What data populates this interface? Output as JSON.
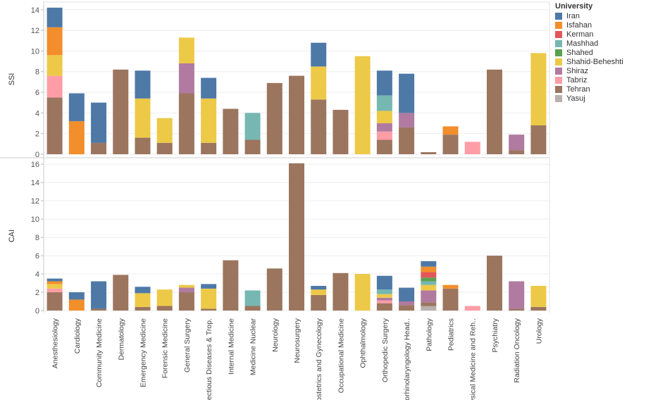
{
  "chart_data": {
    "type": "bar",
    "stacked": true,
    "legend_title": "University",
    "legend_position": "right",
    "categories": [
      "Anesthesiology",
      "Cardiology",
      "Community Medicine",
      "Dermatology",
      "Emergency Medicine",
      "Forensic Medicine",
      "General Surgery",
      "Infectious Diseases & Trop.",
      "Internal Medicine",
      "Medicine Nuclear",
      "Neurology",
      "Neurosurgery",
      "Obstetrics and Gynecology",
      "Occupational Medicine",
      "Ophthalmology",
      "Orthopedic Surgery",
      "Otorhinolaryngology Head..",
      "Pathology",
      "Pediatrics",
      "Physical Medicine and Reh..",
      "Psychiatry",
      "Radiation Oncology",
      "Urology"
    ],
    "universities": [
      "Iran",
      "Isfahan",
      "Kerman",
      "Mashhad",
      "Shahed",
      "Shahid-Beheshti",
      "Shiraz",
      "Tabriz",
      "Tehran",
      "Yasuj"
    ],
    "colors": {
      "Iran": "#4e79a7",
      "Isfahan": "#f28e2b",
      "Kerman": "#e15759",
      "Mashhad": "#76b7b2",
      "Shahed": "#59a14f",
      "Shahid-Beheshti": "#edc948",
      "Shiraz": "#b07aa1",
      "Tabriz": "#ff9da7",
      "Tehran": "#9c755f",
      "Yasuj": "#bab0ac"
    },
    "panels": [
      {
        "label": "SSI",
        "ylim": [
          0,
          14.6
        ],
        "yticks": [
          0,
          2,
          4,
          6,
          8,
          10,
          12,
          14
        ],
        "bars": [
          [
            {
              "u": "Tehran",
              "v": 5.5
            },
            {
              "u": "Tabriz",
              "v": 2.1
            },
            {
              "u": "Shahid-Beheshti",
              "v": 2.0
            },
            {
              "u": "Isfahan",
              "v": 2.7
            },
            {
              "u": "Iran",
              "v": 1.9
            }
          ],
          [
            {
              "u": "Isfahan",
              "v": 3.2
            },
            {
              "u": "Iran",
              "v": 2.7
            }
          ],
          [
            {
              "u": "Tehran",
              "v": 1.1
            },
            {
              "u": "Iran",
              "v": 3.9
            }
          ],
          [
            {
              "u": "Tehran",
              "v": 8.2
            }
          ],
          [
            {
              "u": "Tehran",
              "v": 1.6
            },
            {
              "u": "Shahid-Beheshti",
              "v": 3.8
            },
            {
              "u": "Iran",
              "v": 2.7
            }
          ],
          [
            {
              "u": "Tehran",
              "v": 1.1
            },
            {
              "u": "Shahid-Beheshti",
              "v": 2.4
            }
          ],
          [
            {
              "u": "Tehran",
              "v": 5.9
            },
            {
              "u": "Shiraz",
              "v": 2.9
            },
            {
              "u": "Shahid-Beheshti",
              "v": 2.5
            }
          ],
          [
            {
              "u": "Tehran",
              "v": 1.1
            },
            {
              "u": "Shahid-Beheshti",
              "v": 4.3
            },
            {
              "u": "Iran",
              "v": 2.0
            }
          ],
          [
            {
              "u": "Tehran",
              "v": 4.4
            }
          ],
          [
            {
              "u": "Tehran",
              "v": 1.4
            },
            {
              "u": "Mashhad",
              "v": 2.6
            }
          ],
          [
            {
              "u": "Tehran",
              "v": 6.9
            }
          ],
          [
            {
              "u": "Tehran",
              "v": 7.6
            }
          ],
          [
            {
              "u": "Tehran",
              "v": 5.3
            },
            {
              "u": "Shahid-Beheshti",
              "v": 3.2
            },
            {
              "u": "Iran",
              "v": 2.3
            }
          ],
          [
            {
              "u": "Tehran",
              "v": 4.3
            }
          ],
          [
            {
              "u": "Shahid-Beheshti",
              "v": 9.5
            }
          ],
          [
            {
              "u": "Tehran",
              "v": 1.4
            },
            {
              "u": "Tabriz",
              "v": 0.8
            },
            {
              "u": "Shiraz",
              "v": 0.8
            },
            {
              "u": "Shahid-Beheshti",
              "v": 1.2
            },
            {
              "u": "Mashhad",
              "v": 1.5
            },
            {
              "u": "Iran",
              "v": 2.4
            }
          ],
          [
            {
              "u": "Tehran",
              "v": 2.6
            },
            {
              "u": "Shiraz",
              "v": 1.4
            },
            {
              "u": "Iran",
              "v": 3.8
            }
          ],
          [
            {
              "u": "Tehran",
              "v": 0.2
            }
          ],
          [
            {
              "u": "Tehran",
              "v": 1.9
            },
            {
              "u": "Isfahan",
              "v": 0.8
            }
          ],
          [
            {
              "u": "Tabriz",
              "v": 1.2
            }
          ],
          [
            {
              "u": "Tehran",
              "v": 8.2
            }
          ],
          [
            {
              "u": "Tehran",
              "v": 0.4
            },
            {
              "u": "Shiraz",
              "v": 1.5
            }
          ],
          [
            {
              "u": "Tehran",
              "v": 2.8
            },
            {
              "u": "Shahid-Beheshti",
              "v": 7.0
            }
          ]
        ]
      },
      {
        "label": "CAI",
        "ylim": [
          0,
          16.4
        ],
        "yticks": [
          0,
          2,
          4,
          6,
          8,
          10,
          12,
          14,
          16
        ],
        "bars": [
          [
            {
              "u": "Tehran",
              "v": 2.0
            },
            {
              "u": "Tabriz",
              "v": 0.4
            },
            {
              "u": "Shahid-Beheshti",
              "v": 0.5
            },
            {
              "u": "Isfahan",
              "v": 0.3
            },
            {
              "u": "Iran",
              "v": 0.3
            }
          ],
          [
            {
              "u": "Isfahan",
              "v": 1.2
            },
            {
              "u": "Iran",
              "v": 0.8
            }
          ],
          [
            {
              "u": "Tehran",
              "v": 0.2
            },
            {
              "u": "Iran",
              "v": 3.0
            }
          ],
          [
            {
              "u": "Tehran",
              "v": 3.9
            }
          ],
          [
            {
              "u": "Tehran",
              "v": 0.4
            },
            {
              "u": "Shahid-Beheshti",
              "v": 1.5
            },
            {
              "u": "Iran",
              "v": 0.7
            }
          ],
          [
            {
              "u": "Tehran",
              "v": 0.5
            },
            {
              "u": "Shahid-Beheshti",
              "v": 1.8
            }
          ],
          [
            {
              "u": "Tehran",
              "v": 2.0
            },
            {
              "u": "Shiraz",
              "v": 0.5
            },
            {
              "u": "Shahid-Beheshti",
              "v": 0.3
            }
          ],
          [
            {
              "u": "Tehran",
              "v": 0.2
            },
            {
              "u": "Shahid-Beheshti",
              "v": 2.2
            },
            {
              "u": "Iran",
              "v": 0.5
            }
          ],
          [
            {
              "u": "Tehran",
              "v": 5.5
            }
          ],
          [
            {
              "u": "Tehran",
              "v": 0.5
            },
            {
              "u": "Mashhad",
              "v": 1.7
            }
          ],
          [
            {
              "u": "Tehran",
              "v": 4.6
            }
          ],
          [
            {
              "u": "Tehran",
              "v": 16.1
            }
          ],
          [
            {
              "u": "Tehran",
              "v": 1.7
            },
            {
              "u": "Shahid-Beheshti",
              "v": 0.6
            },
            {
              "u": "Iran",
              "v": 0.4
            }
          ],
          [
            {
              "u": "Tehran",
              "v": 4.1
            }
          ],
          [
            {
              "u": "Shahid-Beheshti",
              "v": 4.0
            }
          ],
          [
            {
              "u": "Tehran",
              "v": 0.8
            },
            {
              "u": "Tabriz",
              "v": 0.3
            },
            {
              "u": "Shiraz",
              "v": 0.3
            },
            {
              "u": "Shahid-Beheshti",
              "v": 0.4
            },
            {
              "u": "Mashhad",
              "v": 0.5
            },
            {
              "u": "Iran",
              "v": 1.5
            }
          ],
          [
            {
              "u": "Tehran",
              "v": 0.6
            },
            {
              "u": "Shiraz",
              "v": 0.4
            },
            {
              "u": "Iran",
              "v": 1.5
            }
          ],
          [
            {
              "u": "Yasuj",
              "v": 0.5
            },
            {
              "u": "Tehran",
              "v": 0.4
            },
            {
              "u": "Shiraz",
              "v": 1.3
            },
            {
              "u": "Shahid-Beheshti",
              "v": 0.6
            },
            {
              "u": "Mashhad",
              "v": 0.4
            },
            {
              "u": "Shahed",
              "v": 0.4
            },
            {
              "u": "Kerman",
              "v": 0.6
            },
            {
              "u": "Isfahan",
              "v": 0.6
            },
            {
              "u": "Iran",
              "v": 0.6
            }
          ],
          [
            {
              "u": "Tehran",
              "v": 2.4
            },
            {
              "u": "Isfahan",
              "v": 0.4
            }
          ],
          [
            {
              "u": "Tabriz",
              "v": 0.5
            }
          ],
          [
            {
              "u": "Tehran",
              "v": 6.0
            }
          ],
          [
            {
              "u": "Tehran",
              "v": 0.2
            },
            {
              "u": "Shiraz",
              "v": 3.0
            }
          ],
          [
            {
              "u": "Tehran",
              "v": 0.4
            },
            {
              "u": "Shahid-Beheshti",
              "v": 2.3
            }
          ]
        ]
      }
    ]
  }
}
